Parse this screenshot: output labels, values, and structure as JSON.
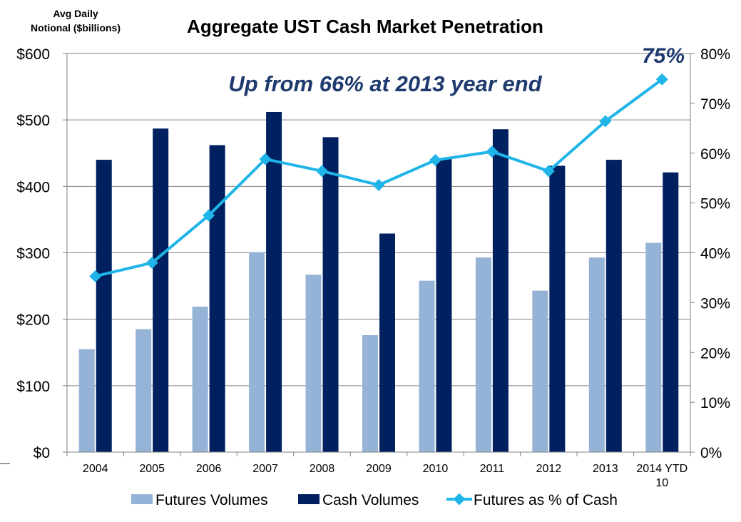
{
  "chart_data": {
    "type": "bar",
    "title": "Aggregate UST Cash Market Penetration",
    "y_left_title": [
      "Avg Daily",
      "Notional ($billions)"
    ],
    "annotation": "Up from 66% at 2013 year end",
    "callout": "75%",
    "categories": [
      [
        "2004"
      ],
      [
        "2005"
      ],
      [
        "2006"
      ],
      [
        "2007"
      ],
      [
        "2008"
      ],
      [
        "2009"
      ],
      [
        "2010"
      ],
      [
        "2011"
      ],
      [
        "2012"
      ],
      [
        "2013"
      ],
      [
        "2014 YTD",
        "10"
      ]
    ],
    "y_left": {
      "min": 0,
      "max": 600,
      "ticks": [
        0,
        100,
        200,
        300,
        400,
        500,
        600
      ],
      "tick_labels": [
        "$0",
        "$100",
        "$200",
        "$300",
        "$400",
        "$500",
        "$600"
      ]
    },
    "y_right": {
      "min": 0,
      "max": 80,
      "ticks": [
        0,
        10,
        20,
        30,
        40,
        50,
        60,
        70,
        80
      ],
      "tick_labels": [
        "0%",
        "10%",
        "20%",
        "30%",
        "40%",
        "50%",
        "60%",
        "70%",
        "80%"
      ]
    },
    "grid": true,
    "series": [
      {
        "name": "Futures Volumes",
        "type": "bar",
        "axis": "left",
        "color": "#95B3D7",
        "values": [
          155,
          185,
          219,
          301,
          267,
          176,
          258,
          293,
          243,
          293,
          315
        ]
      },
      {
        "name": "Cash Volumes",
        "type": "bar",
        "axis": "left",
        "color": "#002060",
        "values": [
          440,
          487,
          462,
          512,
          474,
          329,
          441,
          486,
          431,
          440,
          421
        ]
      },
      {
        "name": "Futures as % of Cash",
        "type": "line",
        "axis": "right",
        "color": "#1FB5E9",
        "values": [
          35.3,
          38.0,
          47.5,
          58.8,
          56.4,
          53.6,
          58.6,
          60.3,
          56.4,
          66.4,
          74.8
        ]
      }
    ],
    "legend": {
      "position": "bottom"
    }
  }
}
